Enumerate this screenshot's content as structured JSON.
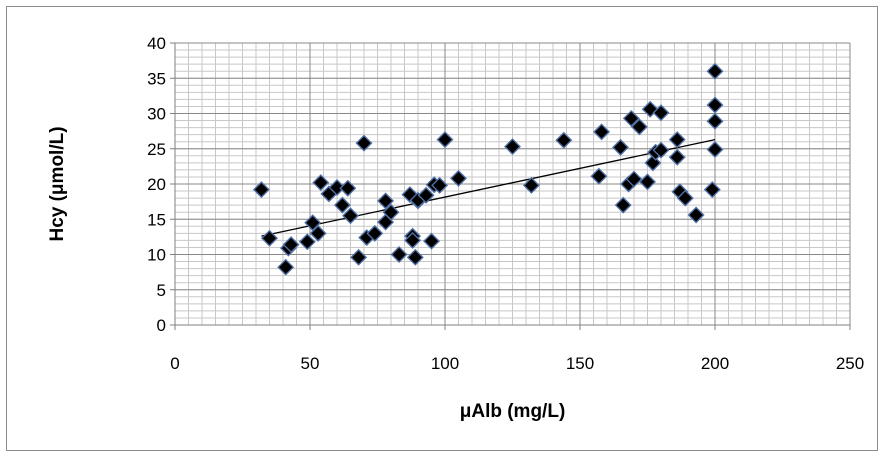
{
  "chart_data": {
    "type": "scatter",
    "title": "",
    "xlabel": "μAlb (mg/L)",
    "ylabel": "Hcy (μmol/L)",
    "xlim": [
      0,
      250
    ],
    "ylim": [
      0,
      40
    ],
    "x_ticks": [
      0,
      50,
      100,
      150,
      200,
      250
    ],
    "y_ticks": [
      0,
      5,
      10,
      15,
      20,
      25,
      30,
      35,
      40
    ],
    "x_tick_labels": [
      "0",
      "50",
      "100",
      "150",
      "200",
      "250"
    ],
    "y_tick_labels": [
      "0",
      "5",
      "10",
      "15",
      "20",
      "25",
      "30",
      "35",
      "40"
    ],
    "grid": true,
    "legend": "none",
    "marker": "diamond",
    "marker_color": "#000000",
    "marker_edge_color": "#4f6fa5",
    "series": [
      {
        "x": [
          32,
          35,
          41,
          42,
          43,
          49,
          51,
          53,
          54,
          57,
          60,
          62,
          64,
          65,
          68,
          70,
          71,
          74,
          78,
          78,
          80,
          83,
          87,
          88,
          88,
          89,
          90,
          90,
          93,
          95,
          96,
          98,
          100,
          105,
          125,
          132,
          144,
          157,
          158,
          165,
          166,
          168,
          169,
          170,
          172,
          175,
          176,
          177,
          178,
          180,
          180,
          186,
          186,
          187,
          189,
          193,
          199,
          200,
          200,
          200,
          200
        ],
        "y": [
          19.2,
          12.3,
          8.2,
          10.9,
          11.4,
          11.8,
          14.5,
          13.0,
          20.2,
          18.6,
          19.5,
          17.0,
          19.4,
          15.5,
          9.6,
          25.8,
          12.4,
          13.0,
          14.6,
          17.6,
          16.0,
          10.0,
          18.5,
          12.6,
          12.0,
          9.6,
          17.6,
          17.7,
          18.4,
          11.9,
          19.9,
          19.8,
          26.3,
          20.8,
          25.3,
          19.8,
          26.2,
          21.1,
          27.4,
          25.2,
          17.0,
          20.0,
          29.3,
          20.7,
          28.1,
          20.3,
          30.6,
          23.0,
          24.5,
          24.8,
          30.1,
          26.3,
          23.8,
          18.9,
          18.0,
          15.6,
          19.2,
          24.9,
          28.9,
          31.2,
          36.0
        ]
      }
    ],
    "trendline": {
      "type": "linear",
      "x": [
        32,
        200
      ],
      "y": [
        12.6,
        26.3
      ]
    }
  }
}
